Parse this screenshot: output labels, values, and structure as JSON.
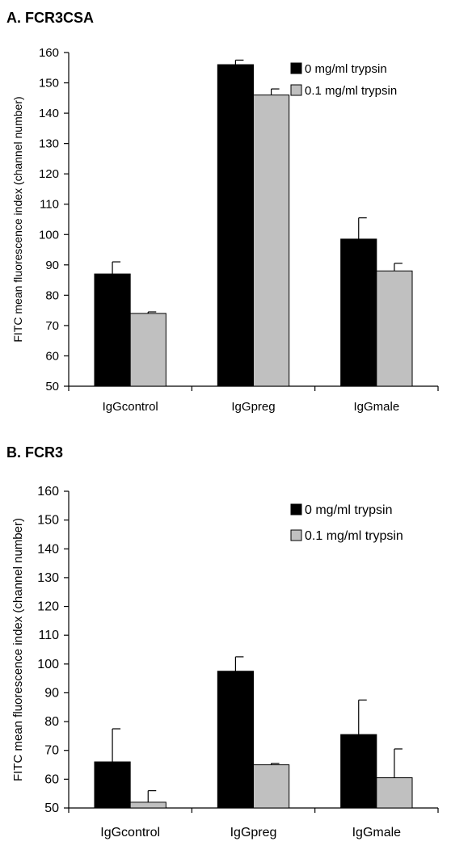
{
  "colors": {
    "series0": "#000000",
    "series1": "#c0c0c0",
    "axis": "#000000"
  },
  "chart_data": [
    {
      "panel_title": "A. FCR3CSA",
      "type": "bar",
      "ylabel": "FITC mean fluorescence index (channel number)",
      "ylim": [
        50,
        160
      ],
      "yticks": [
        50,
        60,
        70,
        80,
        90,
        100,
        110,
        120,
        130,
        140,
        150,
        160
      ],
      "categories": [
        "IgGcontrol",
        "IgGpreg",
        "IgGmale"
      ],
      "series": [
        {
          "name": "0 mg/ml trypsin",
          "values": [
            87,
            156,
            98.5
          ],
          "errors": [
            4,
            1.5,
            7
          ]
        },
        {
          "name": "0.1 mg/ml trypsin",
          "values": [
            74,
            146,
            88
          ],
          "errors": [
            0.5,
            2,
            2.5
          ]
        }
      ],
      "legend": "top-right"
    },
    {
      "panel_title": "B. FCR3",
      "type": "bar",
      "ylabel": "FITC mean fluorescence index (channel number)",
      "ylim": [
        50,
        160
      ],
      "yticks": [
        50,
        60,
        70,
        80,
        90,
        100,
        110,
        120,
        130,
        140,
        150,
        160
      ],
      "categories": [
        "IgGcontrol",
        "IgGpreg",
        "IgGmale"
      ],
      "series": [
        {
          "name": "0 mg/ml trypsin",
          "values": [
            66,
            97.5,
            75.5
          ],
          "errors": [
            11.5,
            5,
            12
          ]
        },
        {
          "name": "0.1 mg/ml trypsin",
          "values": [
            52,
            65,
            60.5
          ],
          "errors": [
            4,
            0.5,
            10
          ]
        }
      ],
      "legend": "top-right"
    }
  ]
}
